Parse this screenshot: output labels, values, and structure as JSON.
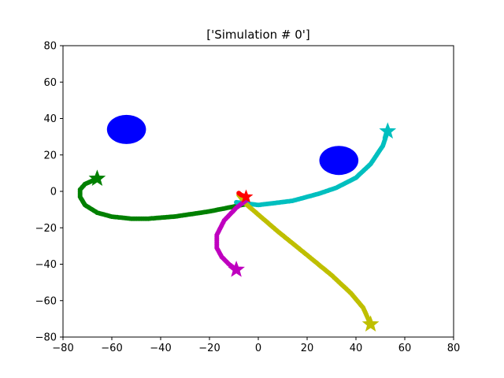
{
  "chart_data": {
    "type": "scatter",
    "title": "['Simulation # 0']",
    "xlabel": "",
    "ylabel": "",
    "xlim": [
      -80,
      80
    ],
    "ylim": [
      -80,
      80
    ],
    "xticks": [
      -80,
      -60,
      -40,
      -20,
      0,
      20,
      40,
      60,
      80
    ],
    "yticks": [
      -80,
      -60,
      -40,
      -20,
      0,
      20,
      40,
      60,
      80
    ],
    "xtick_labels": [
      "−80",
      "−60",
      "−40",
      "−20",
      "0",
      "20",
      "40",
      "60",
      "80"
    ],
    "ytick_labels": [
      "−80",
      "−60",
      "−40",
      "−20",
      "0",
      "20",
      "40",
      "60",
      "80"
    ],
    "grid": false,
    "obstacles": [
      {
        "cx": -54,
        "cy": 34,
        "rx": 8,
        "ry": 8,
        "color": "#0000ff"
      },
      {
        "cx": 33,
        "cy": 17,
        "rx": 8,
        "ry": 8,
        "color": "#0000ff"
      }
    ],
    "series": [
      {
        "color": "#008000",
        "x": [
          -5,
          -20,
          -34,
          -45,
          -52,
          -60,
          -66,
          -71,
          -73,
          -73,
          -71,
          -66
        ],
        "y": [
          -7,
          -11,
          -13.8,
          -15,
          -15,
          -13.9,
          -11.7,
          -7.5,
          -3,
          1,
          4,
          7
        ]
      },
      {
        "color": "#00bfbf",
        "x": [
          -9,
          0,
          14,
          25,
          32,
          40,
          46,
          51,
          53
        ],
        "y": [
          -6,
          -7.5,
          -5.2,
          -1.2,
          2,
          7.5,
          15,
          25,
          33
        ]
      },
      {
        "color": "#bfbf00",
        "x": [
          -8,
          -5,
          8,
          20,
          30,
          38,
          43,
          46
        ],
        "y": [
          -2,
          -7,
          -22,
          -35,
          -46,
          -56,
          -64,
          -73
        ]
      },
      {
        "color": "#bf00bf",
        "x": [
          -5,
          -9,
          -14,
          -17,
          -17,
          -15,
          -12,
          -9
        ],
        "y": [
          -5,
          -9,
          -16,
          -24,
          -31,
          -36,
          -40,
          -43
        ]
      },
      {
        "color": "#ff0000",
        "x": [
          -8,
          -7,
          -5
        ],
        "y": [
          -1,
          -2,
          -3
        ]
      }
    ]
  }
}
